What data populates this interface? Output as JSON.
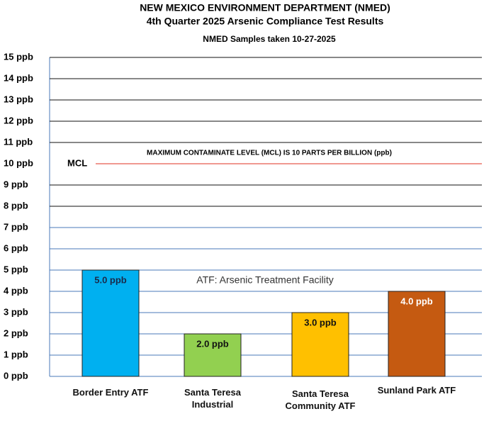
{
  "chart_data": {
    "type": "bar",
    "title": "NEW MEXICO ENVIRONMENT DEPARTMENT (NMED)",
    "subtitle": "4th Quarter 2025 Arsenic Compliance Test Results",
    "note": "NMED Samples taken 10-27-2025",
    "categories": [
      "Border Entry ATF",
      "Santa Teresa Industrial",
      "Santa Teresa Community ATF",
      "Sunland Park ATF"
    ],
    "values": [
      5,
      2,
      3,
      4
    ],
    "value_labels": [
      "5.0 ppb",
      "2.0 ppb",
      "3.0 ppb",
      "4.0 ppb"
    ],
    "colors": [
      "#00b0f0",
      "#92d050",
      "#ffc000",
      "#c55a11"
    ],
    "ylim": [
      0,
      15
    ],
    "yticks": [
      {
        "value": 0,
        "label": "0 ppb"
      },
      {
        "value": 1,
        "label": "1 ppb"
      },
      {
        "value": 2,
        "label": "2 ppb"
      },
      {
        "value": 3,
        "label": "3 ppb"
      },
      {
        "value": 4,
        "label": "4 ppb"
      },
      {
        "value": 5,
        "label": "5 ppb"
      },
      {
        "value": 6,
        "label": "6 ppb"
      },
      {
        "value": 7,
        "label": "7 ppb"
      },
      {
        "value": 8,
        "label": "8 ppb"
      },
      {
        "value": 9,
        "label": "9 ppb"
      },
      {
        "value": 10,
        "label": "10 ppb"
      },
      {
        "value": 11,
        "label": "11 ppb"
      },
      {
        "value": 12,
        "label": "12 ppb"
      },
      {
        "value": 13,
        "label": "13 ppb"
      },
      {
        "value": 14,
        "label": "14 ppb"
      },
      {
        "value": 15,
        "label": "15 ppb"
      }
    ],
    "grid": true,
    "reference_line": {
      "value": 10,
      "label": "MCL",
      "color": "#e03020",
      "annotation": "MAXIMUM CONTAMINATE LEVEL (MCL) IS 10 PARTS PER BILLION (ppb)"
    },
    "annotation": "ATF: Arsenic Treatment Facility"
  }
}
